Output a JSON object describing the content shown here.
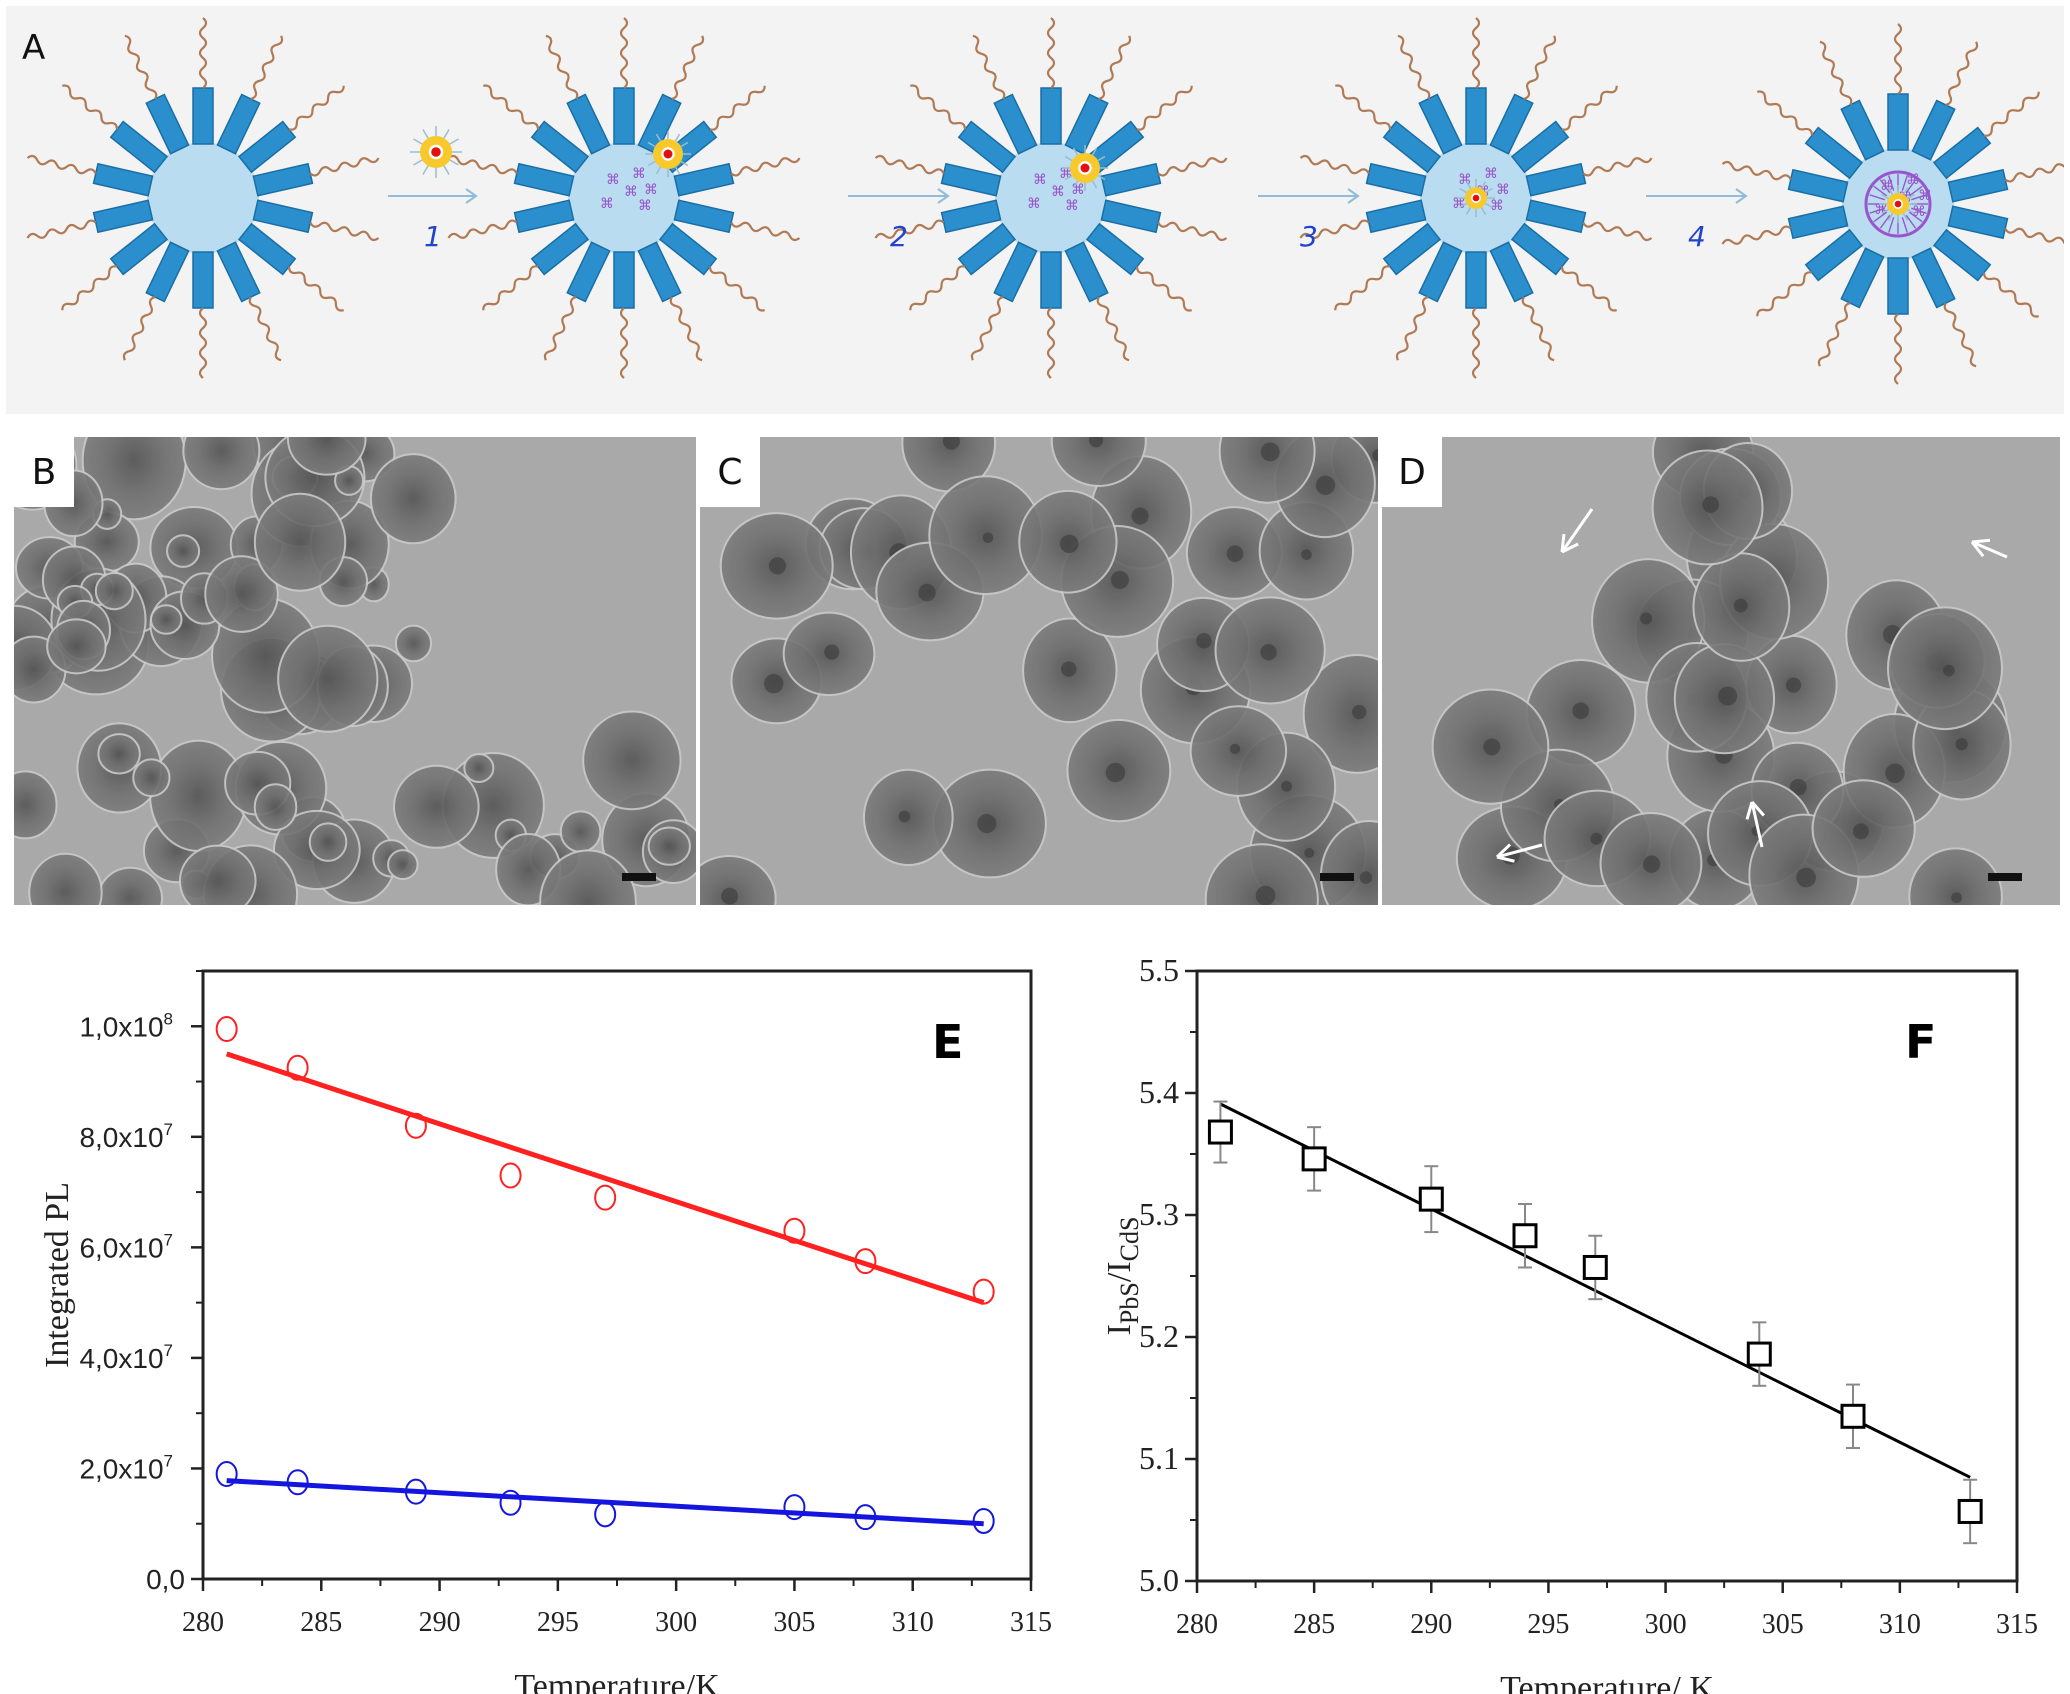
{
  "figure": {
    "panels": [
      "A",
      "B",
      "C",
      "D",
      "E",
      "F"
    ],
    "panel_a": {
      "label": "A",
      "steps": [
        "1",
        "2",
        "3",
        "4"
      ],
      "colors": {
        "background": "#f3f3f3",
        "core": "#b9dcf0",
        "rod": "#2a8fcc",
        "rod_edge": "#1a6ea6",
        "tail": "#b07a55",
        "arrow": "#8fbcd8",
        "qd_shell": "#f8c92c",
        "qd_core": "#e01010",
        "linker": "#9955cc",
        "step_text": "#2244cc"
      }
    },
    "tem_panels": [
      {
        "label": "B",
        "description": "aggregated irregular nanoparticles",
        "scale_bar": true
      },
      {
        "label": "C",
        "description": "uniform spherical nanoparticles with dark cores",
        "scale_bar": true
      },
      {
        "label": "D",
        "description": "spherical nanoparticles with dark cores, white arrows",
        "scale_bar": true,
        "arrows": 4
      }
    ]
  },
  "chart_data": [
    {
      "type": "scatter",
      "panel_label": "E",
      "title": "",
      "xlabel": "Temperature/K",
      "ylabel": "Integrated PL",
      "xlim": [
        280,
        315
      ],
      "ylim": [
        0,
        110000000
      ],
      "x_ticks": [
        "280",
        "285",
        "290",
        "295",
        "300",
        "305",
        "310",
        "315"
      ],
      "y_ticks": [
        "0,0",
        "2,0x10^7",
        "4,0x10^7",
        "6,0x10^7",
        "8,0x10^7",
        "1,0x10^8"
      ],
      "grid": false,
      "legend": null,
      "series": [
        {
          "name": "red",
          "color": "#ff2020",
          "marker": "open-circle",
          "x": [
            281,
            284,
            289,
            293,
            297,
            305,
            308,
            313
          ],
          "values": [
            99500000,
            92500000,
            82000000,
            73000000,
            69000000,
            63000000,
            57500000,
            52000000
          ],
          "fit": {
            "x": [
              281,
              313
            ],
            "y": [
              95000000,
              50000000
            ]
          }
        },
        {
          "name": "blue",
          "color": "#1515e0",
          "marker": "open-circle",
          "x": [
            281,
            284,
            289,
            293,
            297,
            305,
            308,
            313
          ],
          "values": [
            19000000,
            17500000,
            15800000,
            13800000,
            11700000,
            13000000,
            11200000,
            10500000
          ],
          "fit": {
            "x": [
              281,
              313
            ],
            "y": [
              17800000,
              10000000
            ]
          }
        }
      ]
    },
    {
      "type": "scatter",
      "panel_label": "F",
      "title": "",
      "xlabel": "Temperature/ K",
      "ylabel": "I_PbS/I_CdS",
      "xlim": [
        280,
        315
      ],
      "ylim": [
        5.0,
        5.5
      ],
      "x_ticks": [
        "280",
        "285",
        "290",
        "295",
        "300",
        "305",
        "310",
        "315"
      ],
      "y_ticks": [
        "5.0",
        "5.1",
        "5.2",
        "5.3",
        "5.4",
        "5.5"
      ],
      "grid": false,
      "legend": null,
      "series": [
        {
          "name": "ratio",
          "color": "#000000",
          "marker": "open-square",
          "x": [
            281,
            285,
            290,
            294,
            297,
            304,
            308,
            313
          ],
          "values": [
            5.368,
            5.346,
            5.313,
            5.283,
            5.257,
            5.186,
            5.135,
            5.057
          ],
          "error": [
            0.025,
            0.026,
            0.027,
            0.026,
            0.026,
            0.026,
            0.026,
            0.026
          ],
          "fit": {
            "x": [
              281,
              313
            ],
            "y": [
              5.391,
              5.085
            ]
          }
        }
      ]
    }
  ]
}
